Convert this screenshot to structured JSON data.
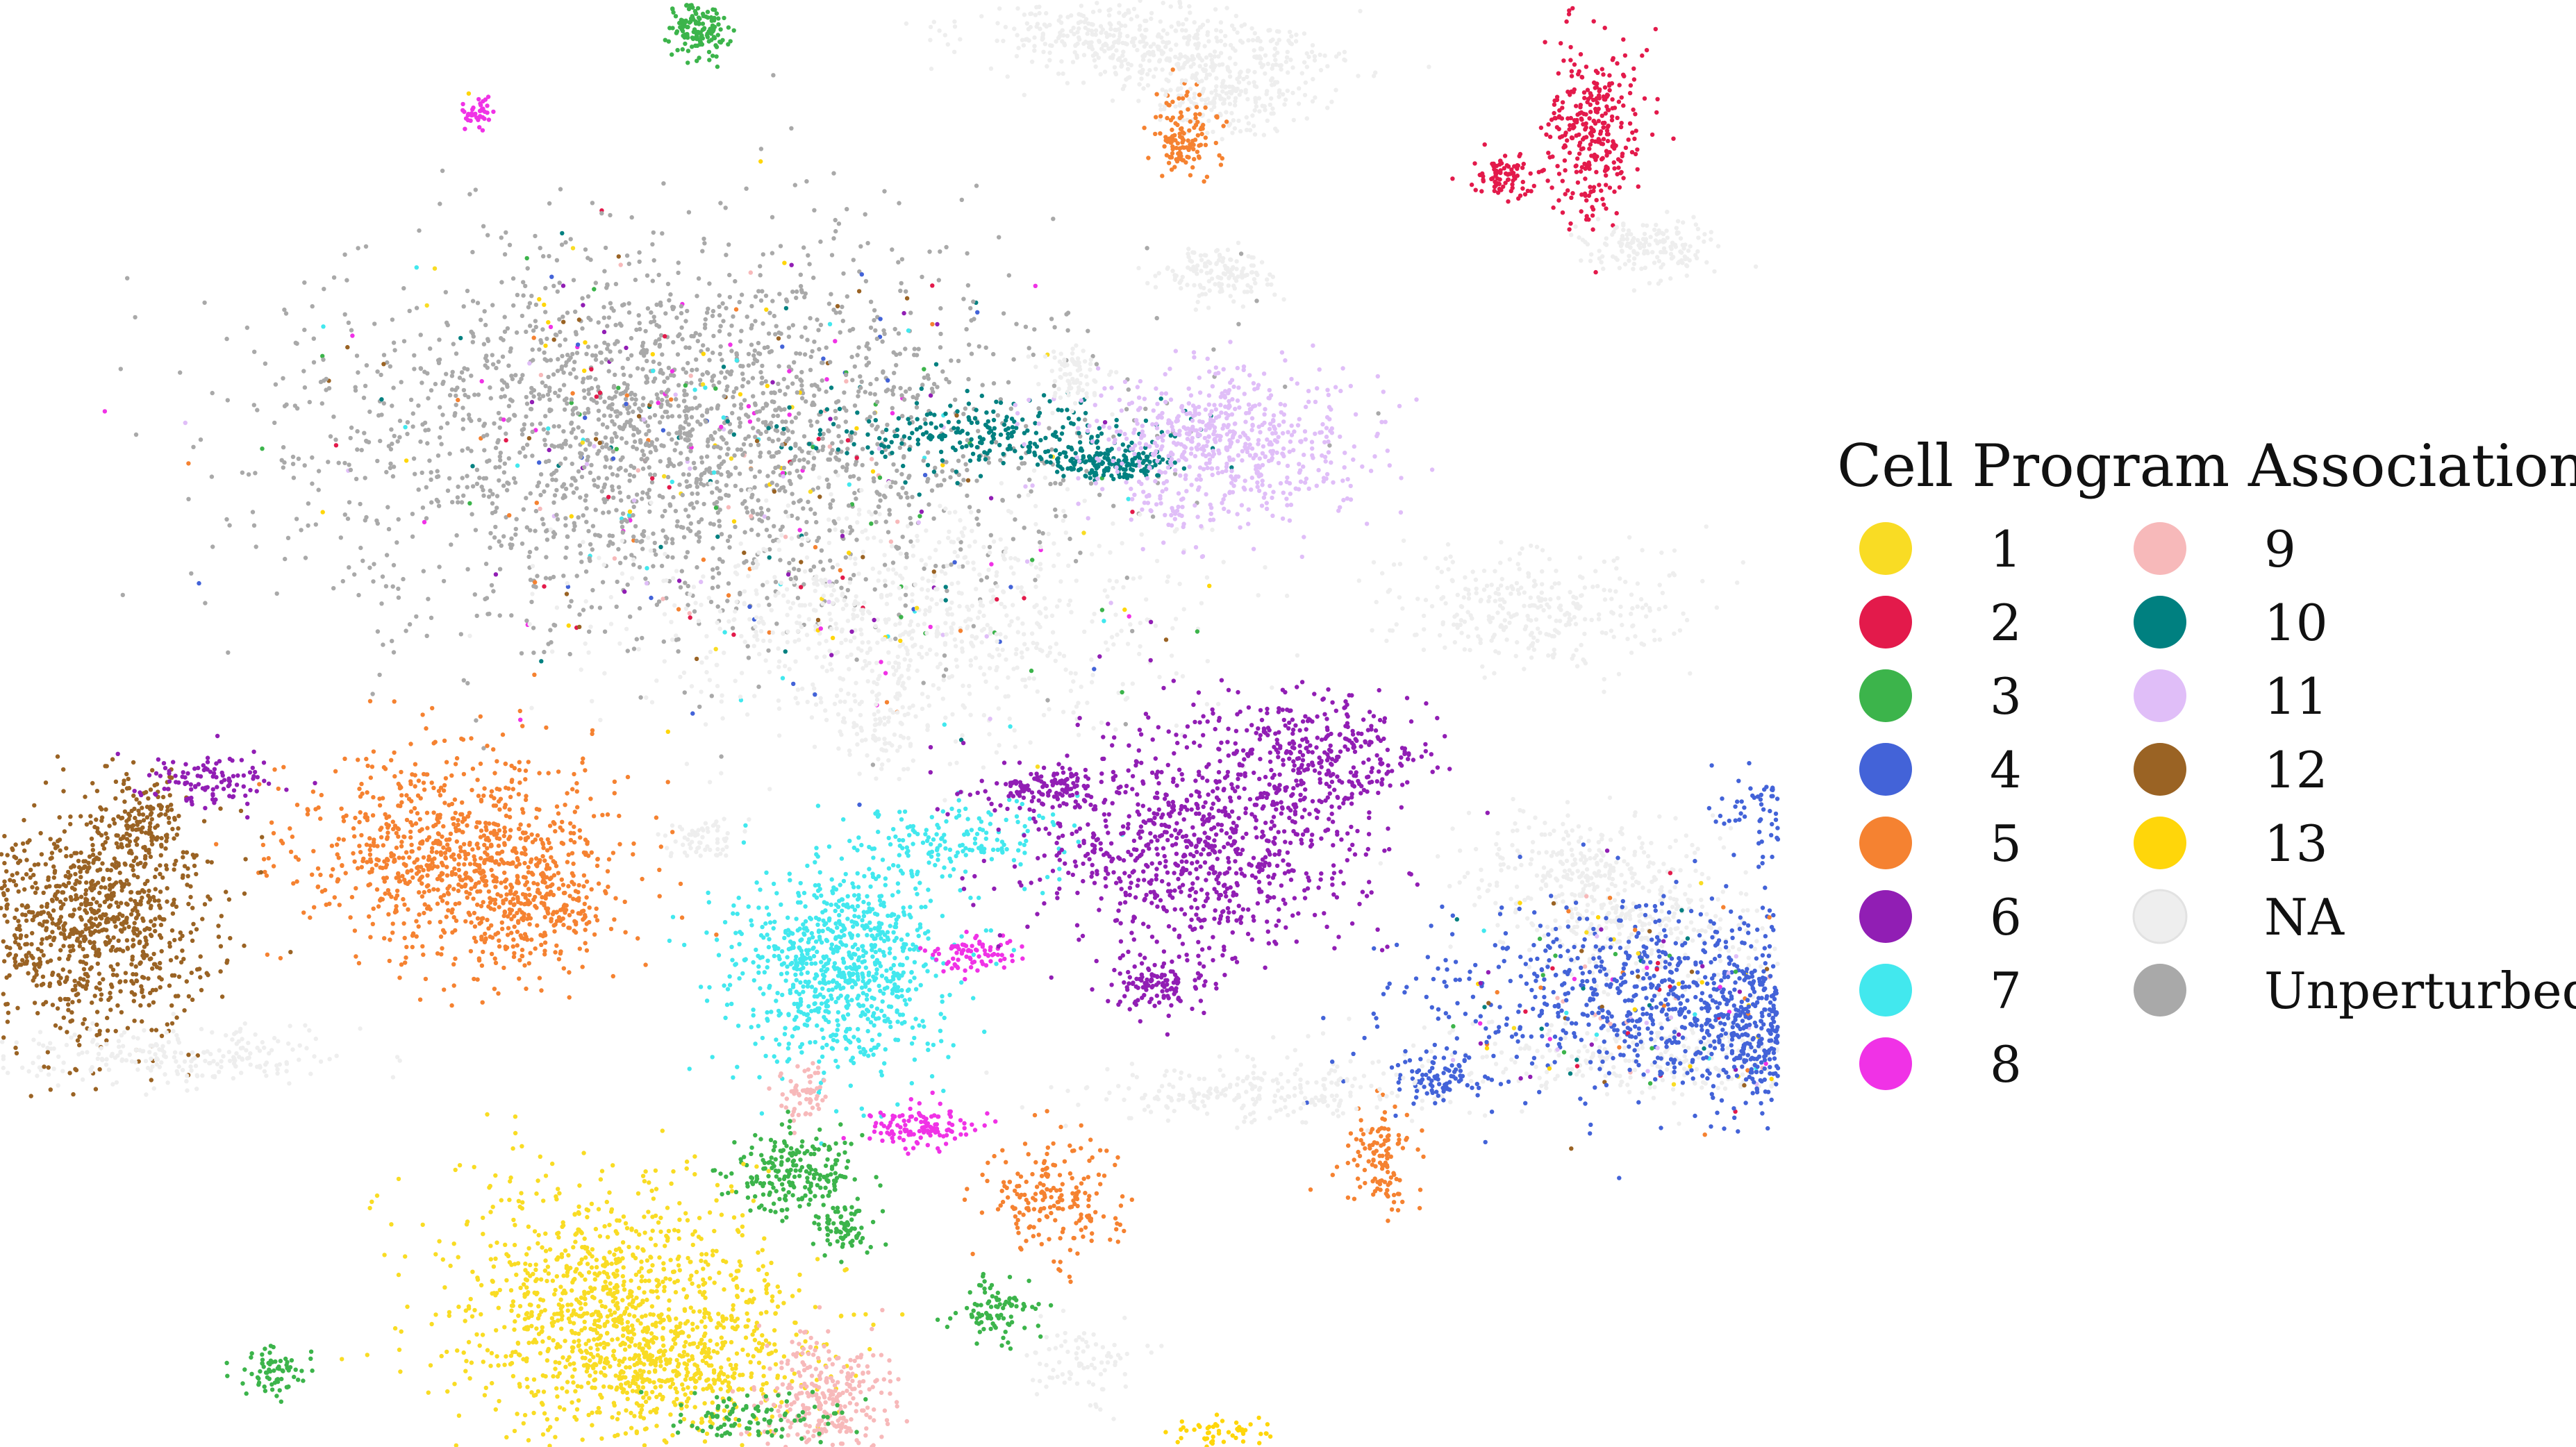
{
  "chart_data": {
    "type": "scatter",
    "title": "",
    "xlabel": "",
    "ylabel": "",
    "axes_visible": false,
    "grid": false,
    "legend": {
      "title": "Cell Program Association",
      "placement": "right",
      "columns": 2,
      "entries": [
        {
          "label": "1",
          "color": "#F9DC24"
        },
        {
          "label": "2",
          "color": "#E31A4B"
        },
        {
          "label": "3",
          "color": "#3CB44B"
        },
        {
          "label": "4",
          "color": "#4363D8"
        },
        {
          "label": "5",
          "color": "#F58231"
        },
        {
          "label": "6",
          "color": "#911EB4"
        },
        {
          "label": "7",
          "color": "#42E8EE"
        },
        {
          "label": "8",
          "color": "#F032E6"
        },
        {
          "label": "9",
          "color": "#F7B9BA"
        },
        {
          "label": "10",
          "color": "#008080"
        },
        {
          "label": "11",
          "color": "#E0BEF8"
        },
        {
          "label": "12",
          "color": "#9A6324"
        },
        {
          "label": "13",
          "color": "#FFD60A"
        },
        {
          "label": "NA",
          "color": "#EEEEEE"
        },
        {
          "label": "Unperturbed",
          "color": "#A9A9A9"
        }
      ]
    },
    "clusters": [
      {
        "group": "Unperturbed",
        "cx": 0.24,
        "cy": 0.7,
        "sx": 0.065,
        "sy": 0.065,
        "n": 2600,
        "mix": 0.12
      },
      {
        "group": "NA",
        "cx": 0.32,
        "cy": 0.57,
        "sx": 0.05,
        "sy": 0.04,
        "n": 900,
        "mix": 0.1
      },
      {
        "group": "10",
        "cx": 0.35,
        "cy": 0.7,
        "sx": 0.03,
        "sy": 0.012,
        "n": 250,
        "mix": 0.0
      },
      {
        "group": "10",
        "cx": 0.39,
        "cy": 0.68,
        "sx": 0.012,
        "sy": 0.006,
        "n": 180,
        "mix": 0.0
      },
      {
        "group": "11",
        "cx": 0.43,
        "cy": 0.69,
        "sx": 0.024,
        "sy": 0.028,
        "n": 650,
        "mix": 0.0
      },
      {
        "group": "2",
        "cx": 0.56,
        "cy": 0.91,
        "sx": 0.008,
        "sy": 0.03,
        "n": 320,
        "mix": 0.0
      },
      {
        "group": "2",
        "cx": 0.53,
        "cy": 0.88,
        "sx": 0.006,
        "sy": 0.008,
        "n": 90,
        "mix": 0.0
      },
      {
        "group": "NA",
        "cx": 0.58,
        "cy": 0.83,
        "sx": 0.012,
        "sy": 0.01,
        "n": 160,
        "mix": 0.0
      },
      {
        "group": "3",
        "cx": 0.245,
        "cy": 0.98,
        "sx": 0.005,
        "sy": 0.01,
        "n": 140,
        "mix": 0.0
      },
      {
        "group": "8",
        "cx": 0.168,
        "cy": 0.922,
        "sx": 0.003,
        "sy": 0.006,
        "n": 40,
        "mix": 0.0
      },
      {
        "group": "NA",
        "cx": 0.39,
        "cy": 0.98,
        "sx": 0.025,
        "sy": 0.01,
        "n": 220,
        "mix": 0.0
      },
      {
        "group": "NA",
        "cx": 0.43,
        "cy": 0.93,
        "sx": 0.015,
        "sy": 0.01,
        "n": 160,
        "mix": 0.0
      },
      {
        "group": "5",
        "cx": 0.415,
        "cy": 0.91,
        "sx": 0.005,
        "sy": 0.015,
        "n": 70,
        "mix": 0.0
      },
      {
        "group": "NA",
        "cx": 0.43,
        "cy": 0.81,
        "sx": 0.01,
        "sy": 0.01,
        "n": 140,
        "mix": 0.0
      },
      {
        "group": "NA",
        "cx": 0.377,
        "cy": 0.74,
        "sx": 0.006,
        "sy": 0.01,
        "n": 80,
        "mix": 0.0
      },
      {
        "group": "NA",
        "cx": 0.54,
        "cy": 0.58,
        "sx": 0.025,
        "sy": 0.02,
        "n": 320,
        "mix": 0.0
      },
      {
        "group": "NA",
        "cx": 0.31,
        "cy": 0.5,
        "sx": 0.01,
        "sy": 0.015,
        "n": 80,
        "mix": 0.0
      },
      {
        "group": "NA",
        "cx": 0.245,
        "cy": 0.42,
        "sx": 0.007,
        "sy": 0.008,
        "n": 60,
        "mix": 0.0
      },
      {
        "group": "5",
        "cx": 0.16,
        "cy": 0.41,
        "sx": 0.028,
        "sy": 0.035,
        "n": 900,
        "mix": 0.0
      },
      {
        "group": "5",
        "cx": 0.19,
        "cy": 0.37,
        "sx": 0.012,
        "sy": 0.02,
        "n": 200,
        "mix": 0.0
      },
      {
        "group": "12",
        "cx": 0.03,
        "cy": 0.36,
        "sx": 0.022,
        "sy": 0.04,
        "n": 950,
        "mix": 0.0
      },
      {
        "group": "12",
        "cx": 0.05,
        "cy": 0.43,
        "sx": 0.008,
        "sy": 0.018,
        "n": 140,
        "mix": 0.0
      },
      {
        "group": "6",
        "cx": 0.07,
        "cy": 0.46,
        "sx": 0.012,
        "sy": 0.01,
        "n": 110,
        "mix": 0.0
      },
      {
        "group": "NA",
        "cx": 0.06,
        "cy": 0.27,
        "sx": 0.03,
        "sy": 0.01,
        "n": 240,
        "mix": 0.0
      },
      {
        "group": "7",
        "cx": 0.295,
        "cy": 0.33,
        "sx": 0.02,
        "sy": 0.035,
        "n": 850,
        "mix": 0.0
      },
      {
        "group": "7",
        "cx": 0.335,
        "cy": 0.42,
        "sx": 0.02,
        "sy": 0.015,
        "n": 160,
        "mix": 0.0
      },
      {
        "group": "8",
        "cx": 0.342,
        "cy": 0.34,
        "sx": 0.008,
        "sy": 0.006,
        "n": 80,
        "mix": 0.0
      },
      {
        "group": "8",
        "cx": 0.323,
        "cy": 0.22,
        "sx": 0.01,
        "sy": 0.008,
        "n": 120,
        "mix": 0.0
      },
      {
        "group": "6",
        "cx": 0.42,
        "cy": 0.42,
        "sx": 0.03,
        "sy": 0.04,
        "n": 900,
        "mix": 0.0
      },
      {
        "group": "6",
        "cx": 0.465,
        "cy": 0.48,
        "sx": 0.018,
        "sy": 0.02,
        "n": 300,
        "mix": 0.0
      },
      {
        "group": "6",
        "cx": 0.408,
        "cy": 0.32,
        "sx": 0.008,
        "sy": 0.008,
        "n": 110,
        "mix": 0.0
      },
      {
        "group": "6",
        "cx": 0.365,
        "cy": 0.455,
        "sx": 0.012,
        "sy": 0.008,
        "n": 120,
        "mix": 0.0
      },
      {
        "group": "NA",
        "cx": 0.555,
        "cy": 0.4,
        "sx": 0.02,
        "sy": 0.02,
        "n": 260,
        "mix": 0.0
      },
      {
        "group": "NA",
        "cx": 0.6,
        "cy": 0.27,
        "sx": 0.06,
        "sy": 0.015,
        "n": 420,
        "mix": 0.0
      },
      {
        "group": "NA",
        "cx": 0.58,
        "cy": 0.36,
        "sx": 0.025,
        "sy": 0.02,
        "n": 260,
        "mix": 0.0
      },
      {
        "group": "4",
        "cx": 0.59,
        "cy": 0.31,
        "sx": 0.045,
        "sy": 0.035,
        "n": 1100,
        "mix": 0.18
      },
      {
        "group": "4",
        "cx": 0.635,
        "cy": 0.29,
        "sx": 0.02,
        "sy": 0.025,
        "n": 700,
        "mix": 0.0
      },
      {
        "group": "4",
        "cx": 0.64,
        "cy": 0.44,
        "sx": 0.015,
        "sy": 0.015,
        "n": 240,
        "mix": 0.0
      },
      {
        "group": "4",
        "cx": 0.505,
        "cy": 0.255,
        "sx": 0.008,
        "sy": 0.008,
        "n": 80,
        "mix": 0.0
      },
      {
        "group": "5",
        "cx": 0.485,
        "cy": 0.2,
        "sx": 0.006,
        "sy": 0.02,
        "n": 120,
        "mix": 0.0
      },
      {
        "group": "NA",
        "cx": 0.44,
        "cy": 0.245,
        "sx": 0.03,
        "sy": 0.01,
        "n": 220,
        "mix": 0.0
      },
      {
        "group": "9",
        "cx": 0.283,
        "cy": 0.245,
        "sx": 0.004,
        "sy": 0.01,
        "n": 60,
        "mix": 0.0
      },
      {
        "group": "3",
        "cx": 0.28,
        "cy": 0.19,
        "sx": 0.011,
        "sy": 0.015,
        "n": 220,
        "mix": 0.0
      },
      {
        "group": "3",
        "cx": 0.297,
        "cy": 0.15,
        "sx": 0.005,
        "sy": 0.008,
        "n": 70,
        "mix": 0.0
      },
      {
        "group": "1",
        "cx": 0.21,
        "cy": 0.1,
        "sx": 0.03,
        "sy": 0.045,
        "n": 950,
        "mix": 0.0
      },
      {
        "group": "1",
        "cx": 0.24,
        "cy": 0.06,
        "sx": 0.025,
        "sy": 0.025,
        "n": 450,
        "mix": 0.0
      },
      {
        "group": "9",
        "cx": 0.29,
        "cy": 0.03,
        "sx": 0.012,
        "sy": 0.025,
        "n": 300,
        "mix": 0.0
      },
      {
        "group": "5",
        "cx": 0.37,
        "cy": 0.17,
        "sx": 0.012,
        "sy": 0.02,
        "n": 200,
        "mix": 0.0
      },
      {
        "group": "3",
        "cx": 0.35,
        "cy": 0.095,
        "sx": 0.008,
        "sy": 0.01,
        "n": 90,
        "mix": 0.0
      },
      {
        "group": "3",
        "cx": 0.095,
        "cy": 0.05,
        "sx": 0.006,
        "sy": 0.008,
        "n": 70,
        "mix": 0.0
      },
      {
        "group": "13",
        "cx": 0.43,
        "cy": 0.01,
        "sx": 0.01,
        "sy": 0.005,
        "n": 50,
        "mix": 0.0
      },
      {
        "group": "3",
        "cx": 0.265,
        "cy": 0.02,
        "sx": 0.015,
        "sy": 0.008,
        "n": 100,
        "mix": 0.0
      },
      {
        "group": "NA",
        "cx": 0.38,
        "cy": 0.06,
        "sx": 0.01,
        "sy": 0.015,
        "n": 80,
        "mix": 0.0
      },
      {
        "group": "NA",
        "cx": 0.42,
        "cy": 0.96,
        "sx": 0.03,
        "sy": 0.012,
        "n": 300,
        "mix": 0.0
      },
      {
        "group": "5",
        "cx": 0.418,
        "cy": 0.9,
        "sx": 0.005,
        "sy": 0.01,
        "n": 60,
        "mix": 0.0
      }
    ]
  }
}
